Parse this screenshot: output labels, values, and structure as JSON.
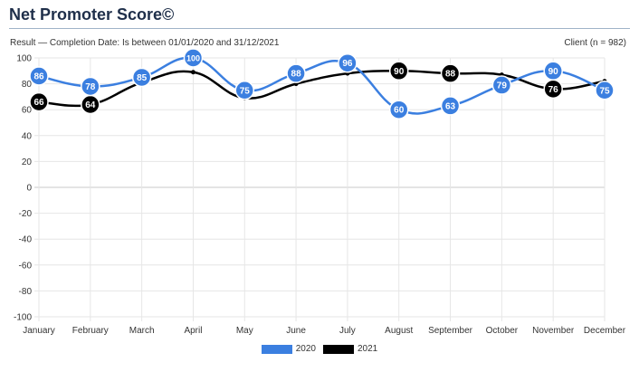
{
  "header": {
    "title": "Net Promoter Score©",
    "subtitle": "Result  —  Completion Date: Is between 01/01/2020 and 31/12/2021",
    "client": "Client (n = 982)"
  },
  "colors": {
    "series_2020": "#3b7fe0",
    "series_2021": "#000000",
    "grid": "#e6e6e6",
    "zero_line": "#c8c8c8"
  },
  "chart_data": {
    "type": "line",
    "categories": [
      "January",
      "February",
      "March",
      "April",
      "May",
      "June",
      "July",
      "August",
      "September",
      "October",
      "November",
      "December"
    ],
    "ylim": [
      -100,
      100
    ],
    "yticks": [
      100,
      80,
      60,
      40,
      20,
      0,
      -20,
      -40,
      -60,
      -80,
      -100
    ],
    "grid": true,
    "legend_position": "bottom",
    "series": [
      {
        "name": "2020",
        "values": [
          86,
          78,
          85,
          100,
          75,
          88,
          96,
          60,
          63,
          79,
          90,
          75
        ],
        "labeled": [
          true,
          true,
          true,
          true,
          true,
          true,
          true,
          true,
          true,
          true,
          true,
          true
        ]
      },
      {
        "name": "2021",
        "values": [
          66,
          64,
          81,
          89,
          69,
          80,
          88,
          90,
          88,
          87,
          76,
          82
        ],
        "labeled": [
          true,
          true,
          false,
          false,
          false,
          false,
          false,
          true,
          true,
          false,
          true,
          false
        ]
      }
    ]
  }
}
